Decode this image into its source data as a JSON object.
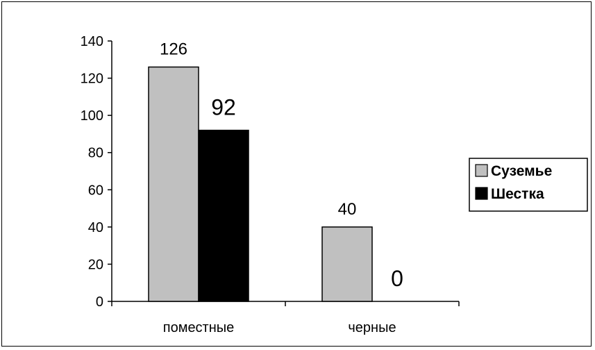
{
  "chart_data": {
    "type": "bar",
    "categories": [
      "поместные",
      "черные"
    ],
    "series": [
      {
        "name": "Суземье",
        "values": [
          126,
          40
        ],
        "color": "#c0c0c0"
      },
      {
        "name": "Шестка",
        "values": [
          92,
          0
        ],
        "color": "#000000"
      }
    ],
    "data_labels": [
      "126",
      "92",
      "40",
      "0"
    ],
    "ylim": [
      0,
      140
    ],
    "yticks": [
      0,
      20,
      40,
      60,
      80,
      100,
      120,
      140
    ],
    "ytick_labels": [
      "0",
      "20",
      "40",
      "60",
      "80",
      "100",
      "120",
      "140"
    ],
    "grid": false,
    "legend_position": "right",
    "title": "",
    "xlabel": "",
    "ylabel": ""
  }
}
